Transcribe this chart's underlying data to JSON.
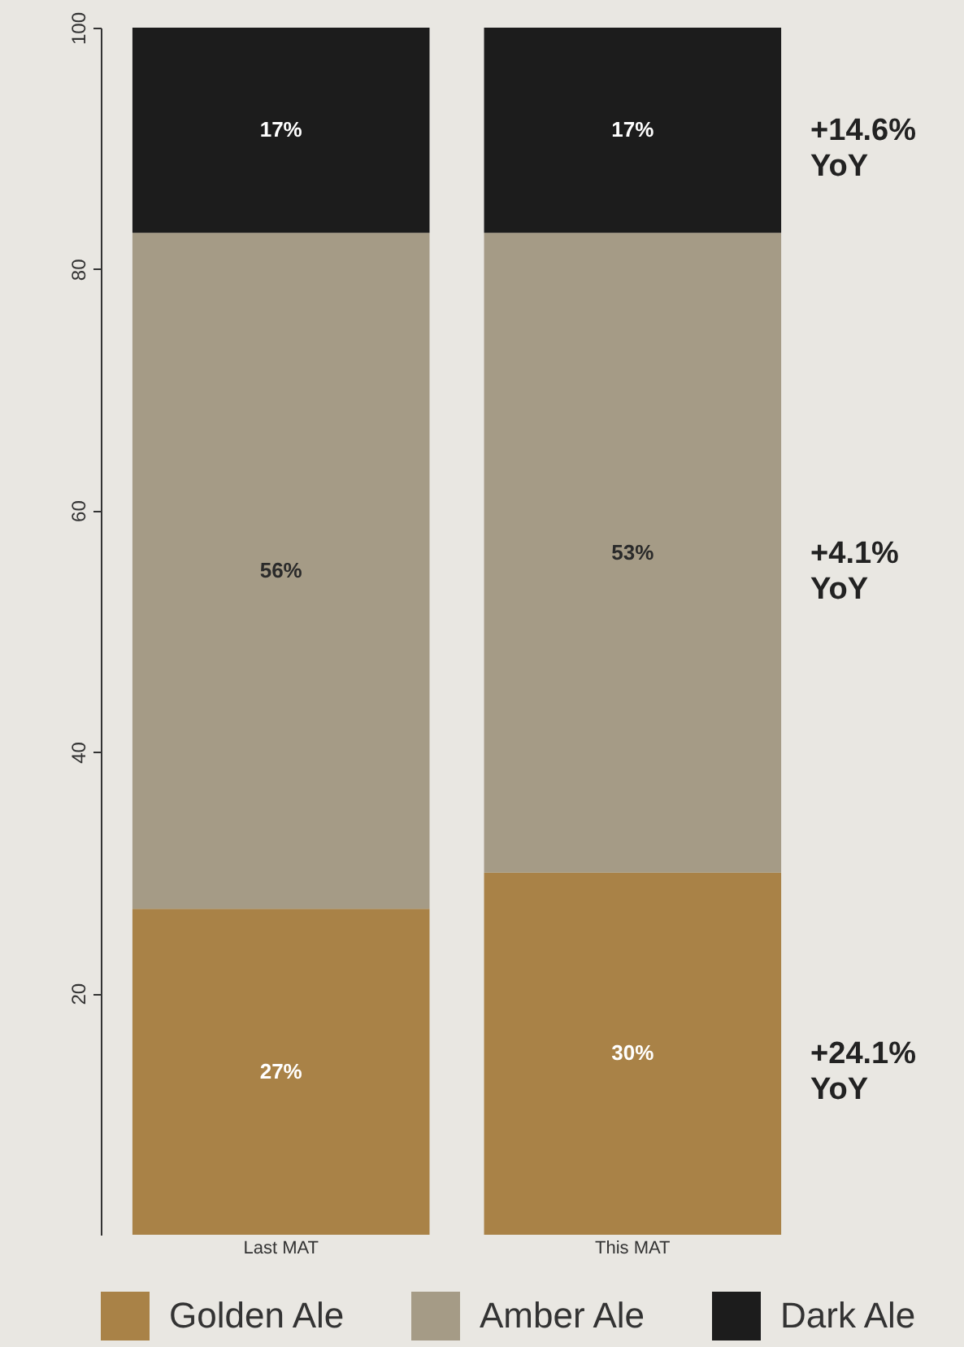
{
  "chart_data": {
    "type": "bar",
    "stacked": true,
    "categories": [
      "Last MAT",
      "This MAT"
    ],
    "series": [
      {
        "name": "Golden Ale",
        "color": "#a98247",
        "values": [
          27,
          30
        ],
        "value_labels": [
          "27%",
          "30%"
        ]
      },
      {
        "name": "Amber Ale",
        "color": "#a59b86",
        "values": [
          56,
          53
        ],
        "value_labels": [
          "56%",
          "53%"
        ]
      },
      {
        "name": "Dark Ale",
        "color": "#1c1c1c",
        "values": [
          17,
          17
        ],
        "value_labels": [
          "17%",
          "17%"
        ]
      }
    ],
    "ylim": [
      0,
      100
    ],
    "yticks": [
      20,
      40,
      60,
      80,
      100
    ],
    "grid": false,
    "legend": "bottom",
    "annotations": [
      "+14.6% YoY",
      "+4.1% YoY",
      "+24.1% YoY"
    ]
  }
}
